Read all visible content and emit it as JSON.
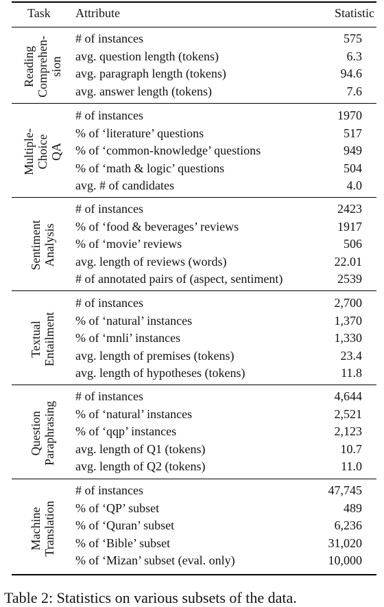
{
  "header": {
    "task": "Task",
    "attribute": "Attribute",
    "statistic": "Statistic"
  },
  "sections": [
    {
      "task_lines": [
        "Reading",
        "Comprehen-",
        "sion"
      ],
      "rows": [
        {
          "attribute": "# of instances",
          "statistic": "575"
        },
        {
          "attribute": "avg. question length (tokens)",
          "statistic": "6.3"
        },
        {
          "attribute": "avg. paragraph length (tokens)",
          "statistic": "94.6"
        },
        {
          "attribute": "avg. answer length (tokens)",
          "statistic": "7.6"
        }
      ]
    },
    {
      "task_lines": [
        "Multiple-",
        "Choice",
        "QA"
      ],
      "rows": [
        {
          "attribute": "# of instances",
          "statistic": "1970"
        },
        {
          "attribute": "% of ‘literature’ questions",
          "statistic": "517"
        },
        {
          "attribute": "% of ‘common-knowledge’ questions",
          "statistic": "949"
        },
        {
          "attribute": "% of ‘math & logic’ questions",
          "statistic": "504"
        },
        {
          "attribute": "avg. # of candidates",
          "statistic": "4.0"
        }
      ]
    },
    {
      "task_lines": [
        "Sentiment",
        "Analysis"
      ],
      "rows": [
        {
          "attribute": "# of instances",
          "statistic": "2423"
        },
        {
          "attribute": "% of ‘food & beverages’ reviews",
          "statistic": "1917"
        },
        {
          "attribute": "% of ‘movie’ reviews",
          "statistic": "506"
        },
        {
          "attribute": "avg. length of reviews (words)",
          "statistic": "22.01"
        },
        {
          "attribute": "# of annotated pairs of (aspect, sentiment)",
          "statistic": "2539"
        }
      ]
    },
    {
      "task_lines": [
        "Textual",
        "Entailment"
      ],
      "rows": [
        {
          "attribute": "# of instances",
          "statistic": "2,700"
        },
        {
          "attribute": "% of ‘natural’ instances",
          "statistic": "1,370"
        },
        {
          "attribute": "% of ‘mnli’ instances",
          "statistic": "1,330"
        },
        {
          "attribute": "avg. length of premises (tokens)",
          "statistic": "23.4"
        },
        {
          "attribute": "avg. length of hypotheses (tokens)",
          "statistic": "11.8"
        }
      ]
    },
    {
      "task_lines": [
        "Question",
        "Paraphrasing"
      ],
      "rows": [
        {
          "attribute": "# of instances",
          "statistic": "4,644"
        },
        {
          "attribute": "% of ‘natural’ instances",
          "statistic": "2,521"
        },
        {
          "attribute": "% of ‘qqp’ instances",
          "statistic": "2,123"
        },
        {
          "attribute": "avg. length of Q1 (tokens)",
          "statistic": "10.7"
        },
        {
          "attribute": "avg. length of Q2 (tokens)",
          "statistic": "11.0"
        }
      ]
    },
    {
      "task_lines": [
        "Machine",
        "Translation"
      ],
      "rows": [
        {
          "attribute": "# of instances",
          "statistic": "47,745"
        },
        {
          "attribute": "% of ‘QP’ subset",
          "statistic": "489"
        },
        {
          "attribute": "% of ‘Quran’ subset",
          "statistic": "6,236"
        },
        {
          "attribute": "% of ‘Bible’ subset",
          "statistic": "31,020"
        },
        {
          "attribute": "% of ‘Mizan’ subset (eval. only)",
          "statistic": "10,000"
        }
      ]
    }
  ],
  "caption": "Table 2: Statistics on various subsets of the data."
}
